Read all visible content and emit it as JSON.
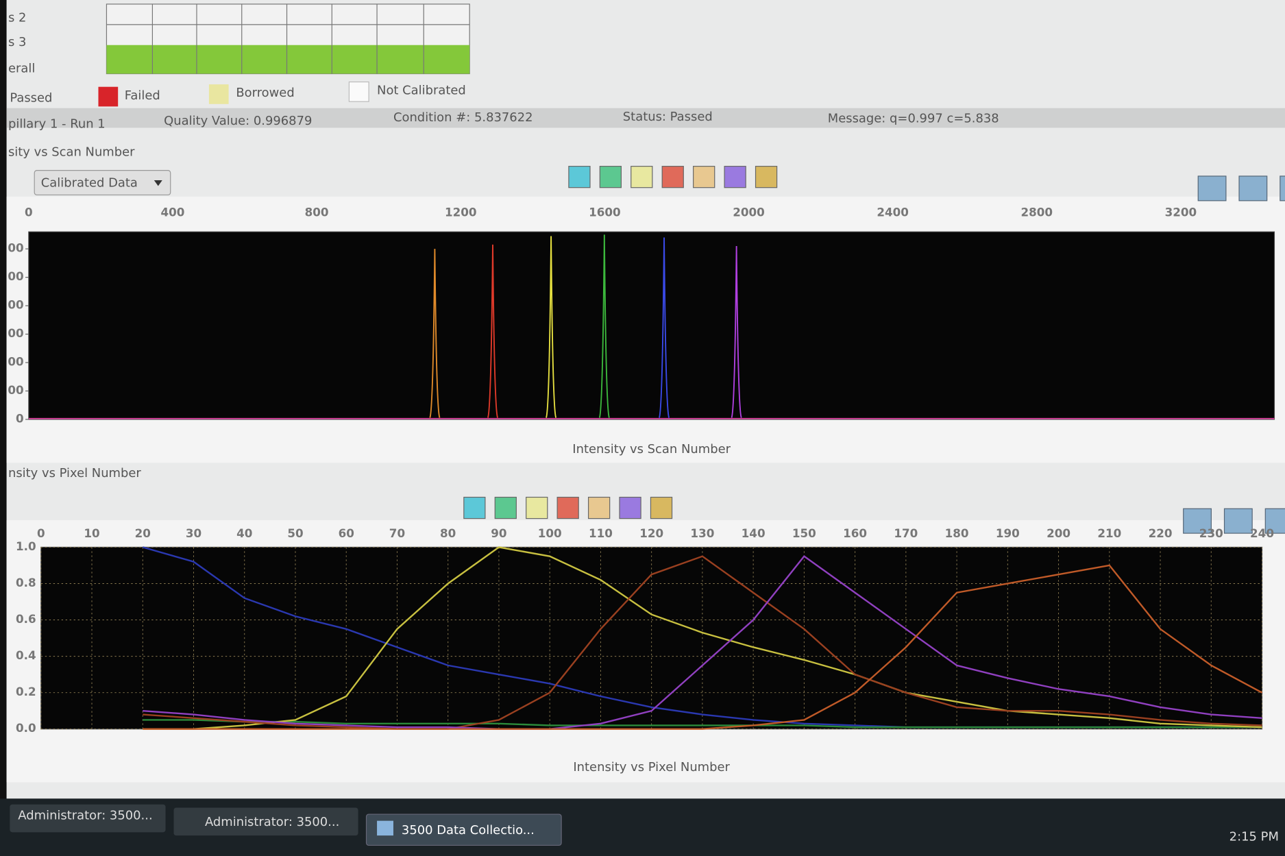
{
  "status_grid": {
    "row_labels": [
      "s 2",
      "s 3",
      "erall"
    ]
  },
  "legend": {
    "items": [
      "Passed",
      "Failed",
      "Borrowed",
      "Not Calibrated"
    ]
  },
  "info_bar": {
    "run": "pillary 1 - Run 1",
    "quality": "Quality Value: 0.996879",
    "condition": "Condition #: 5.837622",
    "status": "Status: Passed",
    "message": "Message: q=0.997 c=5.838"
  },
  "scan_section": {
    "title": "sity vs Scan Number",
    "dropdown": "Calibrated Data"
  },
  "pixel_section": {
    "title": "nsity vs Pixel Number"
  },
  "chart_data": [
    {
      "type": "spike",
      "title": "Intensity vs Scan Number",
      "xlim": [
        0,
        3460
      ],
      "xticks": [
        0,
        400,
        800,
        1200,
        1600,
        2000,
        2400,
        2800,
        3200
      ],
      "ylim": [
        0,
        6600
      ],
      "yticks": [
        0,
        {
          "value": 1000,
          "label": "00"
        },
        {
          "value": 2000,
          "label": "00"
        },
        {
          "value": 3000,
          "label": "00"
        },
        {
          "value": 4000,
          "label": "00"
        },
        {
          "value": 5000,
          "label": "00"
        },
        {
          "value": 6000,
          "label": "00"
        }
      ],
      "grid": false,
      "series": [
        {
          "color": "#e08a2a",
          "x": [
            1128
          ],
          "values": [
            6000
          ]
        },
        {
          "color": "#e03a2a",
          "x": [
            1289
          ],
          "values": [
            6150
          ]
        },
        {
          "color": "#e6e040",
          "x": [
            1451
          ],
          "values": [
            6450
          ]
        },
        {
          "color": "#3cb83c",
          "x": [
            1599
          ],
          "values": [
            6500
          ]
        },
        {
          "color": "#3a4ae8",
          "x": [
            1765
          ],
          "values": [
            6400
          ]
        },
        {
          "color": "#b040e0",
          "x": [
            1966
          ],
          "values": [
            6100
          ]
        }
      ]
    },
    {
      "type": "line",
      "title": "Intensity vs Pixel Number",
      "xlim": [
        0,
        240
      ],
      "xticks": [
        0,
        10,
        20,
        30,
        40,
        50,
        60,
        70,
        80,
        90,
        100,
        110,
        120,
        130,
        140,
        150,
        160,
        170,
        180,
        190,
        200,
        210,
        220,
        230,
        240
      ],
      "ylim": [
        0,
        1
      ],
      "yticks": [
        {
          "value": 0,
          "label": "0.0"
        },
        0.2,
        0.4,
        0.6,
        0.8,
        {
          "value": 1,
          "label": "1.0"
        }
      ],
      "grid": true,
      "x": [
        20,
        30,
        40,
        50,
        60,
        70,
        80,
        90,
        100,
        110,
        120,
        130,
        140,
        150,
        160,
        170,
        180,
        190,
        200,
        210,
        220,
        230,
        240
      ],
      "series": [
        {
          "color": "#2a38b0",
          "values": [
            1.0,
            0.92,
            0.72,
            0.62,
            0.55,
            0.45,
            0.35,
            0.3,
            0.25,
            0.18,
            0.12,
            0.08,
            0.05,
            0.03,
            0.02,
            0.01,
            0.01,
            0.01,
            0.01,
            0.01,
            0.01,
            0.01,
            0.01
          ]
        },
        {
          "color": "#2c8a3a",
          "values": [
            0.05,
            0.05,
            0.04,
            0.04,
            0.03,
            0.03,
            0.03,
            0.03,
            0.02,
            0.02,
            0.02,
            0.02,
            0.02,
            0.02,
            0.01,
            0.01,
            0.01,
            0.01,
            0.01,
            0.01,
            0.01,
            0.01,
            0.01
          ]
        },
        {
          "color": "#c8c040",
          "values": [
            0.0,
            0.0,
            0.02,
            0.05,
            0.18,
            0.55,
            0.8,
            1.0,
            0.95,
            0.82,
            0.63,
            0.53,
            0.45,
            0.38,
            0.3,
            0.2,
            0.15,
            0.1,
            0.08,
            0.06,
            0.03,
            0.02,
            0.01
          ]
        },
        {
          "color": "#9a4020",
          "values": [
            0.08,
            0.06,
            0.04,
            0.02,
            0.01,
            0.0,
            0.0,
            0.05,
            0.2,
            0.55,
            0.85,
            0.95,
            0.75,
            0.55,
            0.3,
            0.2,
            0.12,
            0.1,
            0.1,
            0.08,
            0.05,
            0.03,
            0.02
          ]
        },
        {
          "color": "#9040c0",
          "values": [
            0.1,
            0.08,
            0.05,
            0.03,
            0.02,
            0.01,
            0.01,
            0.0,
            0.0,
            0.03,
            0.1,
            0.35,
            0.6,
            0.95,
            0.75,
            0.55,
            0.35,
            0.28,
            0.22,
            0.18,
            0.12,
            0.08,
            0.06
          ]
        },
        {
          "color": "#c05a28",
          "values": [
            0,
            0,
            0,
            0,
            0,
            0,
            0,
            0,
            0,
            0,
            0,
            0,
            0.02,
            0.05,
            0.2,
            0.45,
            0.75,
            0.8,
            0.85,
            0.9,
            0.55,
            0.35,
            0.2
          ]
        }
      ]
    }
  ],
  "taskbar": {
    "items": [
      "Administrator: 3500...",
      "Administrator: 3500...",
      "3500 Data Collectio..."
    ],
    "clock": "2:15 PM"
  }
}
